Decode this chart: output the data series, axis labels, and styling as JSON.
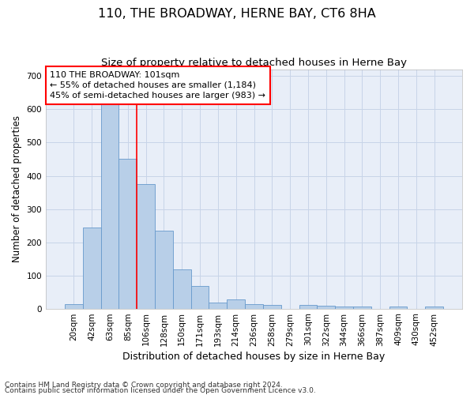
{
  "title": "110, THE BROADWAY, HERNE BAY, CT6 8HA",
  "subtitle": "Size of property relative to detached houses in Herne Bay",
  "xlabel": "Distribution of detached houses by size in Herne Bay",
  "ylabel": "Number of detached properties",
  "footnote1": "Contains HM Land Registry data © Crown copyright and database right 2024.",
  "footnote2": "Contains public sector information licensed under the Open Government Licence v3.0.",
  "bar_labels": [
    "20sqm",
    "42sqm",
    "63sqm",
    "85sqm",
    "106sqm",
    "128sqm",
    "150sqm",
    "171sqm",
    "193sqm",
    "214sqm",
    "236sqm",
    "258sqm",
    "279sqm",
    "301sqm",
    "322sqm",
    "344sqm",
    "366sqm",
    "387sqm",
    "409sqm",
    "430sqm",
    "452sqm"
  ],
  "bar_values": [
    14,
    245,
    620,
    450,
    375,
    235,
    118,
    68,
    17,
    28,
    14,
    12,
    0,
    10,
    8,
    6,
    6,
    0,
    5,
    0,
    6
  ],
  "bar_color": "#b8cfe8",
  "bar_edgecolor": "#6699cc",
  "grid_color": "#c8d4e8",
  "background_color": "#e8eef8",
  "annotation_text": "110 THE BROADWAY: 101sqm\n← 55% of detached houses are smaller (1,184)\n45% of semi-detached houses are larger (983) →",
  "vline_index": 3.5,
  "ylim": [
    0,
    720
  ],
  "yticks": [
    0,
    100,
    200,
    300,
    400,
    500,
    600,
    700
  ],
  "title_fontsize": 11.5,
  "subtitle_fontsize": 9.5,
  "xlabel_fontsize": 9,
  "ylabel_fontsize": 8.5,
  "tick_fontsize": 7.5,
  "annotation_fontsize": 8,
  "footnote_fontsize": 6.5
}
